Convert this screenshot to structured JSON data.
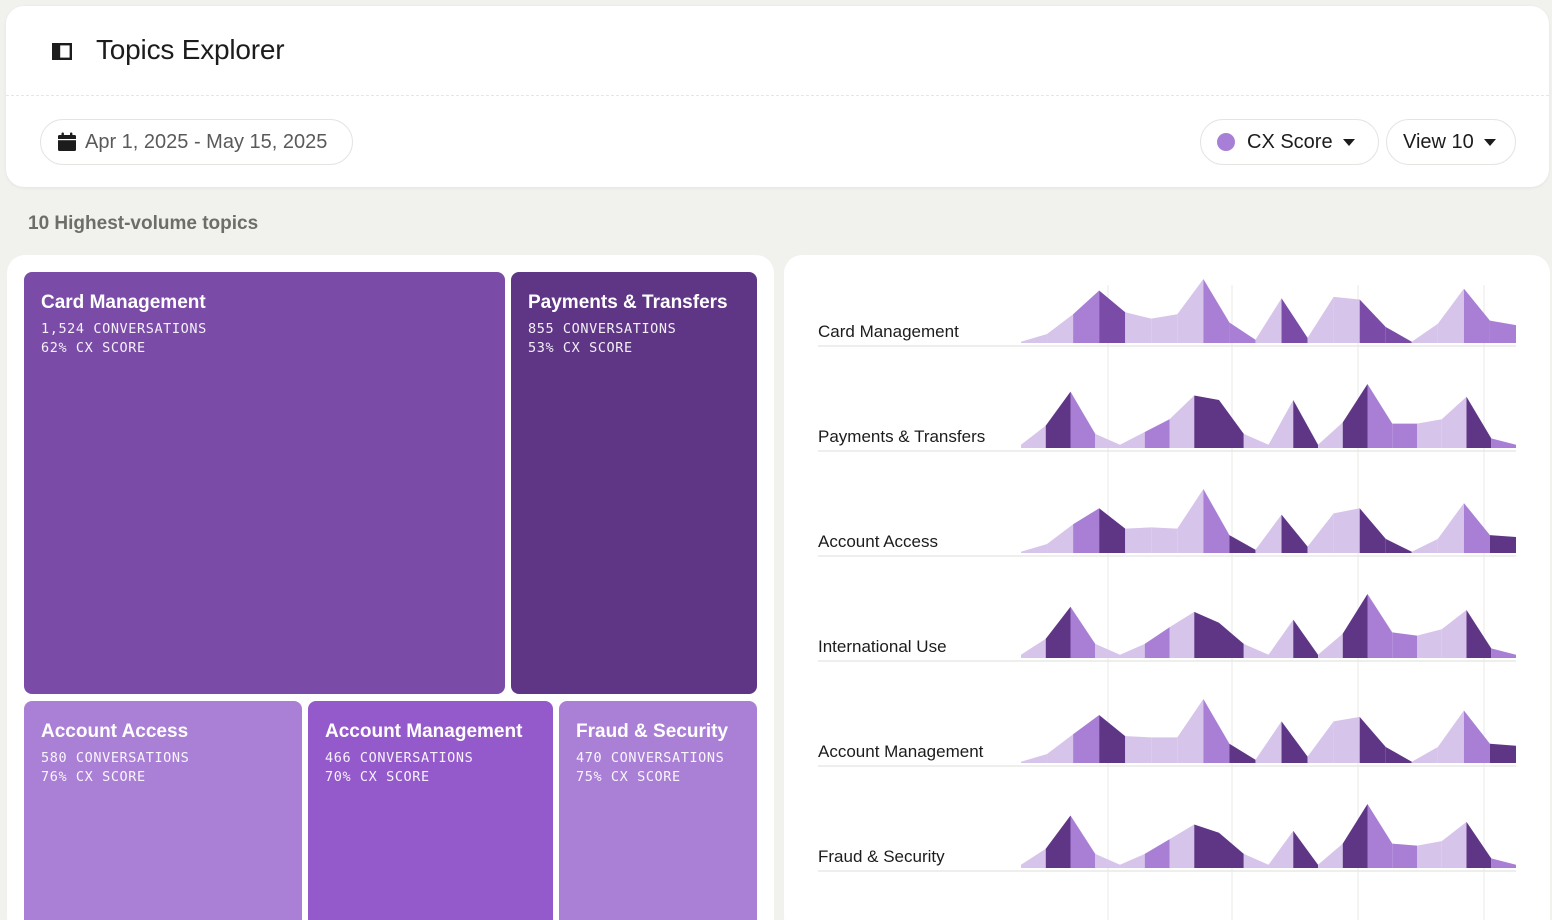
{
  "header": {
    "title": "Topics Explorer",
    "sidebar_icon": "sidebar-toggle-icon"
  },
  "filters": {
    "date_range": "Apr 1, 2025 - May 15, 2025",
    "date_icon": "calendar-icon",
    "metric_label": "CX Score",
    "metric_color": "#a77fd6",
    "view_label": "View 10"
  },
  "section_title": "10 Highest-volume topics",
  "colors": {
    "purple_dark": "#5f3686",
    "purple_mid": "#7a4ca8",
    "purple_bright": "#945acb",
    "purple_light": "#a97fd6",
    "purple_pale": "#d7c4ea"
  },
  "treemap": [
    {
      "name": "Card Management",
      "conversations": "1,524 CONVERSATIONS",
      "score": "62% CX SCORE",
      "color": "#7a4ca8"
    },
    {
      "name": "Payments & Transfers",
      "conversations": "855 CONVERSATIONS",
      "score": "53% CX SCORE",
      "color": "#5f3686"
    },
    {
      "name": "Account Access",
      "conversations": "580 CONVERSATIONS",
      "score": "76% CX SCORE",
      "color": "#aa80d6"
    },
    {
      "name": "Account Management",
      "conversations": "466 CONVERSATIONS",
      "score": "70% CX SCORE",
      "color": "#945acb"
    },
    {
      "name": "Fraud & Security",
      "conversations": "470 CONVERSATIONS",
      "score": "75% CX SCORE",
      "color": "#aa80d6"
    }
  ],
  "chart_data": {
    "type": "area",
    "y_range": [
      0,
      1
    ],
    "gridline_count": 4,
    "rows": [
      {
        "label": "Card Management",
        "values": [
          0.02,
          0.14,
          0.45,
          0.82,
          0.48,
          0.38,
          0.45,
          1.0,
          0.32,
          0.05,
          0.7,
          0.08,
          0.72,
          0.68,
          0.25,
          0.02,
          0.3,
          0.85,
          0.35,
          0.28
        ],
        "shades": [
          "pale",
          "pale",
          "light",
          "mid",
          "pale",
          "pale",
          "pale",
          "light",
          "light",
          "pale",
          "mid",
          "pale",
          "pale",
          "mid",
          "mid",
          "pale",
          "pale",
          "light",
          "light",
          "pale"
        ]
      },
      {
        "label": "Payments & Transfers",
        "values": [
          0.05,
          0.35,
          0.88,
          0.22,
          0.05,
          0.25,
          0.45,
          0.82,
          0.75,
          0.22,
          0.05,
          0.75,
          0.05,
          0.4,
          1.0,
          0.38,
          0.38,
          0.45,
          0.8,
          0.15,
          0.05
        ],
        "shades": [
          "pale",
          "dark",
          "light",
          "pale",
          "pale",
          "light",
          "pale",
          "dark",
          "dark",
          "pale",
          "pale",
          "dark",
          "pale",
          "dark",
          "light",
          "light",
          "pale",
          "pale",
          "dark",
          "light",
          "pale"
        ]
      },
      {
        "label": "Account Access",
        "values": [
          0.02,
          0.14,
          0.45,
          0.7,
          0.38,
          0.4,
          0.38,
          1.0,
          0.28,
          0.05,
          0.6,
          0.1,
          0.62,
          0.7,
          0.22,
          0.02,
          0.22,
          0.78,
          0.28,
          0.25
        ],
        "shades": [
          "pale",
          "pale",
          "light",
          "dark",
          "pale",
          "pale",
          "pale",
          "light",
          "dark",
          "pale",
          "dark",
          "pale",
          "pale",
          "dark",
          "dark",
          "pale",
          "pale",
          "light",
          "dark",
          "pale"
        ]
      },
      {
        "label": "International Use",
        "values": [
          0.05,
          0.3,
          0.8,
          0.22,
          0.05,
          0.22,
          0.48,
          0.72,
          0.55,
          0.22,
          0.05,
          0.6,
          0.05,
          0.38,
          1.0,
          0.4,
          0.35,
          0.45,
          0.75,
          0.15,
          0.05
        ],
        "shades": [
          "pale",
          "dark",
          "light",
          "pale",
          "pale",
          "light",
          "pale",
          "dark",
          "dark",
          "pale",
          "pale",
          "dark",
          "pale",
          "dark",
          "light",
          "light",
          "pale",
          "pale",
          "dark",
          "light",
          "pale"
        ]
      },
      {
        "label": "Account Management",
        "values": [
          0.02,
          0.14,
          0.45,
          0.75,
          0.42,
          0.4,
          0.4,
          1.0,
          0.3,
          0.05,
          0.65,
          0.1,
          0.65,
          0.72,
          0.25,
          0.02,
          0.25,
          0.82,
          0.3,
          0.27
        ],
        "shades": [
          "pale",
          "pale",
          "light",
          "dark",
          "pale",
          "pale",
          "pale",
          "light",
          "dark",
          "pale",
          "dark",
          "pale",
          "pale",
          "dark",
          "dark",
          "pale",
          "pale",
          "light",
          "dark",
          "pale"
        ]
      },
      {
        "label": "Fraud & Security",
        "values": [
          0.05,
          0.3,
          0.82,
          0.22,
          0.05,
          0.22,
          0.45,
          0.68,
          0.55,
          0.22,
          0.05,
          0.58,
          0.05,
          0.38,
          1.0,
          0.38,
          0.35,
          0.42,
          0.72,
          0.15,
          0.05
        ],
        "shades": [
          "pale",
          "dark",
          "light",
          "pale",
          "pale",
          "light",
          "pale",
          "dark",
          "dark",
          "pale",
          "pale",
          "dark",
          "pale",
          "dark",
          "light",
          "light",
          "pale",
          "pale",
          "dark",
          "light",
          "pale"
        ]
      }
    ]
  }
}
